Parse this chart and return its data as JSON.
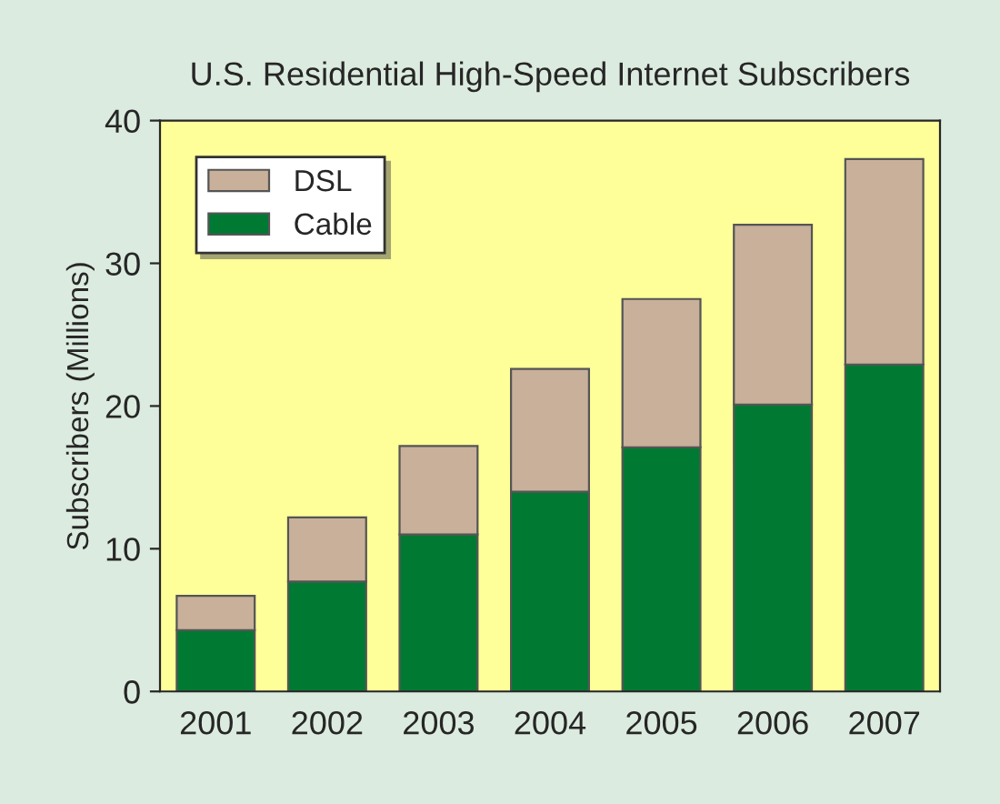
{
  "chart_data": {
    "type": "bar",
    "title": "U.S. Residential High-Speed Internet Subscribers",
    "ylabel": "Subscribers (Millions)",
    "categories": [
      "2001",
      "2002",
      "2003",
      "2004",
      "2005",
      "2006",
      "2007"
    ],
    "stacked": true,
    "series": [
      {
        "name": "Cable",
        "color": "#007a33",
        "values": [
          4.3,
          7.7,
          11.0,
          14.0,
          17.1,
          20.1,
          22.9
        ]
      },
      {
        "name": "DSL",
        "color": "#c8b09a",
        "values": [
          2.4,
          4.5,
          6.2,
          8.6,
          10.4,
          12.6,
          14.4
        ]
      }
    ],
    "ylim": [
      0,
      40
    ],
    "yticks": [
      0,
      10,
      20,
      30,
      40
    ],
    "grid": false,
    "legend": "top left"
  }
}
